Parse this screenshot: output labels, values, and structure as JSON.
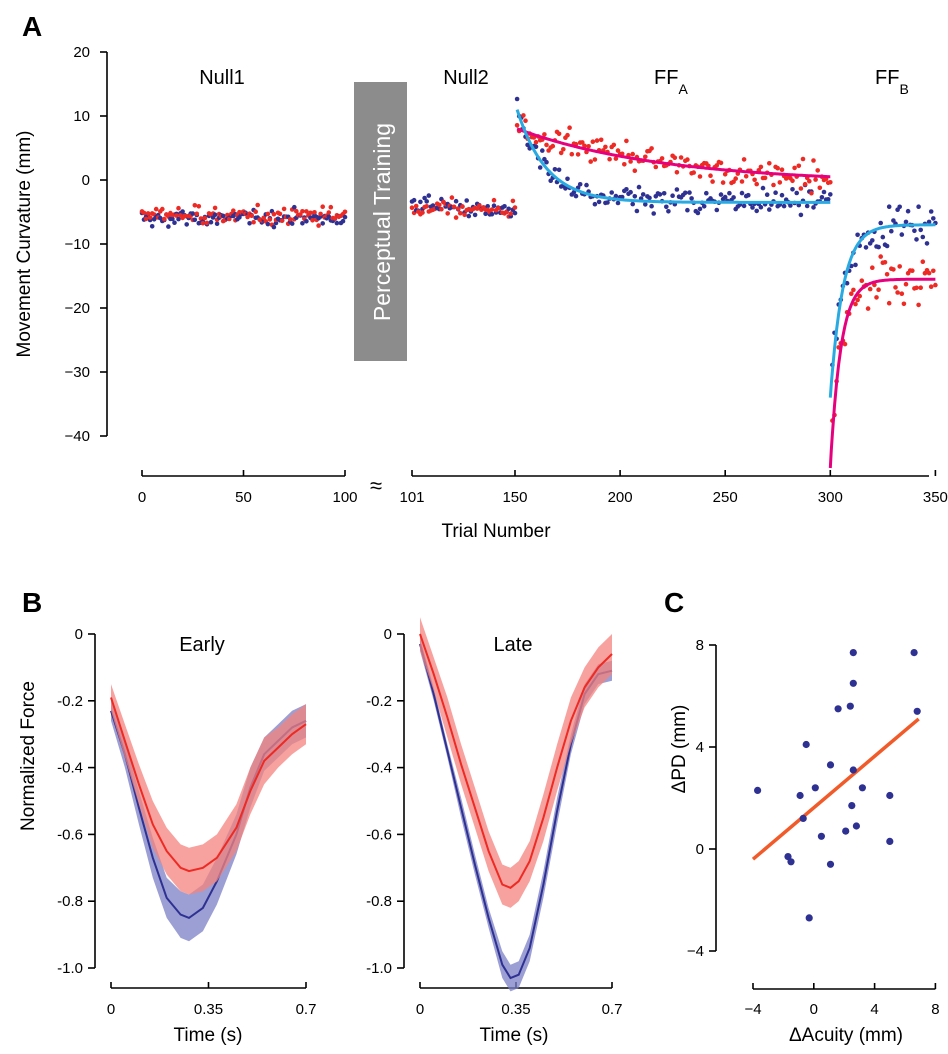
{
  "panel_letters": {
    "a": "A",
    "b": "B",
    "c": "C"
  },
  "colors": {
    "blue": "#2e3192",
    "red": "#ee2a24",
    "cyan_fit": "#29aae1",
    "magenta_fit": "#e6007e",
    "band_blue": "#7b7fc4",
    "band_red": "#f4837d",
    "reg_line": "#f15a29",
    "gray_box": "#8c8c8c"
  },
  "chart_data": [
    {
      "id": "A",
      "type": "scatter",
      "ylabel": "Movement Curvature (mm)",
      "xlabel": "Trial Number",
      "ylim": [
        -40,
        20
      ],
      "yticks": [
        "20",
        "10",
        "0",
        "−10",
        "−20",
        "−30",
        "−40"
      ],
      "xticks_left": [
        "0",
        "50",
        "100"
      ],
      "xticks_right": [
        "101",
        "150",
        "200",
        "250",
        "300",
        "350"
      ],
      "axis_break": "≈",
      "box_label": "Perceptual Training",
      "sections": [
        {
          "label": "Null1",
          "sub": ""
        },
        {
          "label": "Null2",
          "sub": ""
        },
        {
          "label": "FF",
          "sub": "A"
        },
        {
          "label": "FF",
          "sub": "B"
        }
      ],
      "phases": [
        {
          "name": "Null1",
          "trials": [
            0,
            100
          ],
          "blue_mean": -6,
          "red_mean": -5.5
        },
        {
          "name": "Null2",
          "trials": [
            101,
            150
          ],
          "blue_mean": -3.5,
          "red_mean": -4.5
        },
        {
          "name": "FFA",
          "trials": [
            150,
            300
          ],
          "blue_fit": {
            "start": 11,
            "end": -3.5
          },
          "red_fit": {
            "start": 8,
            "end": -0.5
          }
        },
        {
          "name": "FFB",
          "trials": [
            300,
            350
          ],
          "blue_fit": {
            "start": -34,
            "end": -7
          },
          "red_fit": {
            "start": -45,
            "end": -15.5
          }
        }
      ]
    },
    {
      "id": "B-early",
      "type": "line",
      "title": "Early",
      "ylabel": "Normalized Force",
      "xlabel": "Time (s)",
      "xticks": [
        "0",
        "0.35",
        "0.7"
      ],
      "yticks": [
        "0",
        "-0.2",
        "-0.4",
        "-0.6",
        "-0.8",
        "-1.0"
      ],
      "ylim": [
        -1.0,
        0
      ],
      "xlim": [
        0,
        0.7
      ],
      "series": [
        {
          "color": "blue",
          "t": [
            0,
            0.05,
            0.1,
            0.15,
            0.2,
            0.25,
            0.28,
            0.33,
            0.38,
            0.45,
            0.5,
            0.55,
            0.6,
            0.65,
            0.7
          ],
          "mean": [
            -0.23,
            -0.36,
            -0.52,
            -0.67,
            -0.79,
            -0.84,
            -0.85,
            -0.82,
            -0.74,
            -0.6,
            -0.46,
            -0.36,
            -0.32,
            -0.28,
            -0.26
          ],
          "sd": [
            0.03,
            0.04,
            0.05,
            0.06,
            0.06,
            0.07,
            0.07,
            0.07,
            0.07,
            0.06,
            0.06,
            0.05,
            0.05,
            0.05,
            0.05
          ]
        },
        {
          "color": "red",
          "t": [
            0,
            0.05,
            0.1,
            0.15,
            0.2,
            0.25,
            0.28,
            0.33,
            0.38,
            0.45,
            0.5,
            0.55,
            0.6,
            0.65,
            0.7
          ],
          "mean": [
            -0.19,
            -0.32,
            -0.45,
            -0.57,
            -0.65,
            -0.7,
            -0.71,
            -0.7,
            -0.67,
            -0.58,
            -0.47,
            -0.38,
            -0.34,
            -0.3,
            -0.27
          ],
          "sd": [
            0.04,
            0.05,
            0.06,
            0.07,
            0.07,
            0.07,
            0.07,
            0.07,
            0.07,
            0.07,
            0.07,
            0.07,
            0.06,
            0.06,
            0.06
          ]
        }
      ]
    },
    {
      "id": "B-late",
      "type": "line",
      "title": "Late",
      "ylabel": "",
      "xlabel": "Time (s)",
      "xticks": [
        "0",
        "0.35",
        "0.7"
      ],
      "yticks": [
        "0",
        "-0.2",
        "-0.4",
        "-0.6",
        "-0.8",
        "-1.0"
      ],
      "ylim": [
        -1.0,
        0
      ],
      "xlim": [
        0,
        0.7
      ],
      "series": [
        {
          "color": "blue",
          "t": [
            0,
            0.05,
            0.1,
            0.15,
            0.2,
            0.25,
            0.3,
            0.33,
            0.36,
            0.4,
            0.45,
            0.5,
            0.55,
            0.6,
            0.65,
            0.7
          ],
          "mean": [
            -0.03,
            -0.18,
            -0.35,
            -0.52,
            -0.69,
            -0.85,
            -0.99,
            -1.03,
            -1.02,
            -0.94,
            -0.75,
            -0.53,
            -0.33,
            -0.18,
            -0.12,
            -0.11
          ],
          "sd": [
            0.02,
            0.02,
            0.02,
            0.03,
            0.03,
            0.03,
            0.04,
            0.04,
            0.04,
            0.04,
            0.04,
            0.04,
            0.03,
            0.03,
            0.03,
            0.03
          ]
        },
        {
          "color": "red",
          "t": [
            0,
            0.05,
            0.1,
            0.15,
            0.2,
            0.25,
            0.3,
            0.33,
            0.36,
            0.4,
            0.45,
            0.5,
            0.55,
            0.6,
            0.65,
            0.7
          ],
          "mean": [
            -0.0,
            -0.12,
            -0.25,
            -0.39,
            -0.52,
            -0.65,
            -0.75,
            -0.76,
            -0.74,
            -0.68,
            -0.55,
            -0.4,
            -0.26,
            -0.16,
            -0.1,
            -0.06
          ],
          "sd": [
            0.05,
            0.05,
            0.06,
            0.06,
            0.06,
            0.06,
            0.06,
            0.06,
            0.06,
            0.06,
            0.07,
            0.07,
            0.07,
            0.06,
            0.06,
            0.06
          ]
        }
      ]
    },
    {
      "id": "C",
      "type": "scatter",
      "xlabel": "ΔAcuity (mm)",
      "ylabel": "ΔPD (mm)",
      "xlim": [
        -4,
        8
      ],
      "ylim": [
        -4,
        8
      ],
      "xticks": [
        "−4",
        "0",
        "4",
        "8"
      ],
      "yticks": [
        "8",
        "4",
        "0",
        "−4"
      ],
      "points": [
        {
          "x": -3.7,
          "y": 2.3
        },
        {
          "x": -1.7,
          "y": -0.3
        },
        {
          "x": -1.5,
          "y": -0.5
        },
        {
          "x": -0.9,
          "y": 2.1
        },
        {
          "x": -0.7,
          "y": 1.2
        },
        {
          "x": -0.5,
          "y": 4.1
        },
        {
          "x": -0.3,
          "y": -2.7
        },
        {
          "x": 0.1,
          "y": 2.4
        },
        {
          "x": 0.5,
          "y": 0.5
        },
        {
          "x": 1.1,
          "y": 3.3
        },
        {
          "x": 1.1,
          "y": -0.6
        },
        {
          "x": 1.6,
          "y": 5.5
        },
        {
          "x": 2.1,
          "y": 0.7
        },
        {
          "x": 2.4,
          "y": 5.6
        },
        {
          "x": 2.5,
          "y": 1.7
        },
        {
          "x": 2.6,
          "y": 6.5
        },
        {
          "x": 2.6,
          "y": 7.7
        },
        {
          "x": 2.6,
          "y": 3.1
        },
        {
          "x": 2.8,
          "y": 0.9
        },
        {
          "x": 3.2,
          "y": 2.4
        },
        {
          "x": 5.0,
          "y": 2.1
        },
        {
          "x": 5.0,
          "y": 0.3
        },
        {
          "x": 6.6,
          "y": 7.7
        },
        {
          "x": 6.8,
          "y": 5.4
        }
      ],
      "fit": {
        "x": [
          -4,
          6.9
        ],
        "y": [
          -0.4,
          5.1
        ]
      }
    }
  ]
}
